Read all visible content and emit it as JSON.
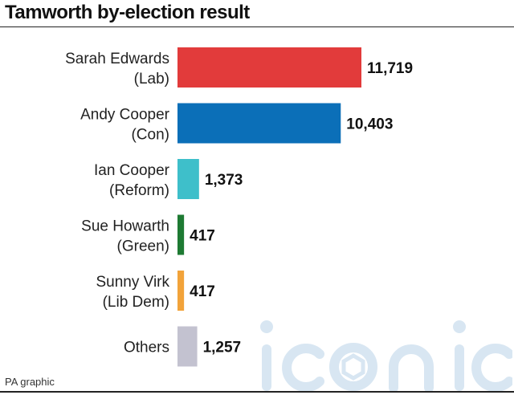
{
  "title": "Tamworth by-election result",
  "source": "PA graphic",
  "watermark": "iconic",
  "chart_data": {
    "type": "bar",
    "orientation": "horizontal",
    "title": "Tamworth by-election result",
    "grid": false,
    "legend": "none",
    "xlim": [
      0,
      13000
    ],
    "categories": [
      [
        "Sarah Edwards",
        "(Lab)"
      ],
      [
        "Andy Cooper",
        "(Con)"
      ],
      [
        "Ian Cooper",
        "(Reform)"
      ],
      [
        "Sue Howarth",
        "(Green)"
      ],
      [
        "Sunny Virk",
        "(Lib Dem)"
      ],
      [
        "Others"
      ]
    ],
    "values": [
      11719,
      10403,
      1373,
      417,
      417,
      1257
    ],
    "value_labels": [
      "11,719",
      "10,403",
      "1,373",
      "417",
      "417",
      "1,257"
    ],
    "colors": [
      "#e23b3b",
      "#0b6fb8",
      "#3ebfca",
      "#1e7a33",
      "#f2a33a",
      "#c3c2d0"
    ]
  }
}
